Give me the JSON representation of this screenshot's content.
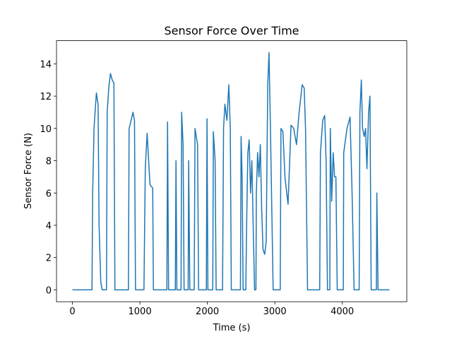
{
  "chart_data": {
    "type": "line",
    "title": "Sensor Force Over Time",
    "x_label": "Time (s)",
    "y_label": "Sensor Force (N)",
    "x": [
      0,
      290,
      300,
      320,
      355,
      380,
      395,
      420,
      440,
      505,
      515,
      540,
      564,
      590,
      615,
      630,
      830,
      840,
      870,
      898,
      920,
      935,
      1060,
      1080,
      1107,
      1130,
      1150,
      1190,
      1200,
      1400,
      1410,
      1425,
      1525,
      1535,
      1548,
      1610,
      1619,
      1640,
      1655,
      1715,
      1723,
      1740,
      1805,
      1817,
      1855,
      1870,
      1985,
      1995,
      2008,
      2080,
      2089,
      2115,
      2130,
      2225,
      2240,
      2260,
      2290,
      2318,
      2340,
      2355,
      2490,
      2500,
      2515,
      2530,
      2570,
      2580,
      2600,
      2620,
      2640,
      2660,
      2684,
      2700,
      2720,
      2726,
      2745,
      2765,
      2785,
      2805,
      2825,
      2850,
      2872,
      2895,
      2914,
      2935,
      2955,
      2975,
      3080,
      3091,
      3120,
      3150,
      3196,
      3240,
      3280,
      3321,
      3360,
      3405,
      3435,
      3455,
      3485,
      3665,
      3676,
      3710,
      3739,
      3760,
      3780,
      3815,
      3822,
      3843,
      3865,
      3885,
      3905,
      3925,
      4015,
      4021,
      4070,
      4115,
      4145,
      4175,
      4250,
      4261,
      4282,
      4300,
      4325,
      4345,
      4365,
      4390,
      4410,
      4428,
      4505,
      4512,
      4530,
      4700
    ],
    "series": [
      {
        "color": "#1f77b4",
        "values": [
          0,
          0,
          6,
          10,
          12.2,
          11.5,
          4,
          0.5,
          0,
          0,
          11,
          12.6,
          13.4,
          13,
          12.8,
          0,
          0,
          10,
          10.5,
          11,
          10.5,
          0,
          0,
          7.5,
          9.7,
          8,
          6.5,
          6.3,
          0,
          0,
          10.4,
          0,
          0,
          8,
          0,
          0,
          11,
          9,
          0,
          0,
          8,
          0,
          0,
          10,
          9,
          0,
          0,
          10.6,
          0,
          0,
          9.8,
          8,
          0,
          0,
          10,
          11.5,
          10.5,
          12.7,
          10,
          0,
          0,
          9.5,
          7,
          0,
          0,
          3.5,
          8.5,
          9.3,
          6,
          8,
          3,
          0,
          0,
          6,
          8.5,
          7,
          9,
          5,
          2.5,
          2.2,
          3,
          12.7,
          14.7,
          10,
          5,
          0,
          0,
          10,
          9.8,
          7,
          5.3,
          10.2,
          10,
          9,
          11,
          12.7,
          12.5,
          10,
          0,
          0,
          8.5,
          10.5,
          10.8,
          8,
          0,
          0,
          10,
          5.5,
          8.5,
          7,
          7,
          0,
          0,
          8.5,
          10,
          10.7,
          6,
          0,
          0,
          11,
          13,
          10,
          9.5,
          10,
          7.5,
          11,
          12,
          0,
          0,
          6,
          0,
          0
        ]
      }
    ],
    "xlim": [
      -236,
      4956
    ],
    "ylim": [
      -0.735,
      15.435
    ],
    "xticks": [
      0,
      1000,
      2000,
      3000,
      4000
    ],
    "yticks": [
      0,
      2,
      4,
      6,
      8,
      10,
      12,
      14
    ]
  }
}
